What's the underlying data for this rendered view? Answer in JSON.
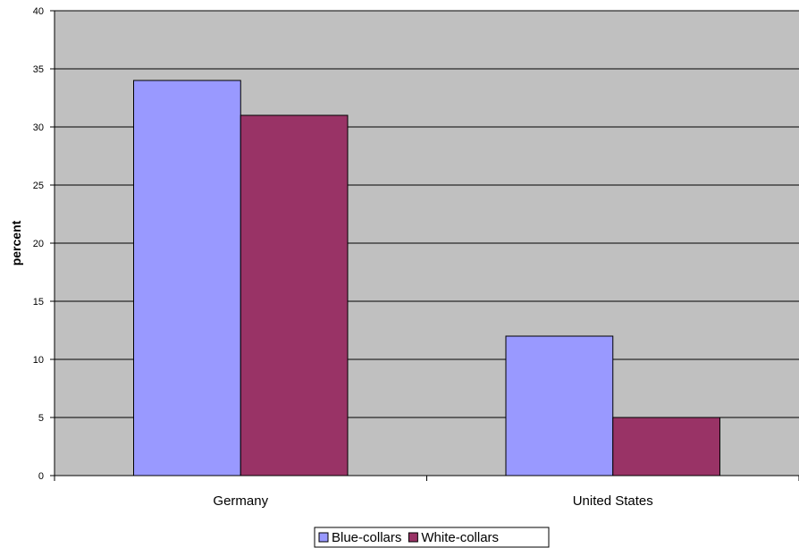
{
  "chart_data": {
    "type": "bar",
    "categories": [
      "Germany",
      "United States"
    ],
    "series": [
      {
        "name": "Blue-collars",
        "values": [
          34,
          12
        ],
        "color": "#9999ff"
      },
      {
        "name": "White-collars",
        "values": [
          31,
          5
        ],
        "color": "#993366"
      }
    ],
    "title": "",
    "xlabel": "",
    "ylabel": "percent",
    "ylim": [
      0,
      40
    ],
    "yticks": [
      0,
      5,
      10,
      15,
      20,
      25,
      30,
      35,
      40
    ],
    "grid": true,
    "legend_position": "bottom",
    "plot_background": "#c0c0c0"
  }
}
